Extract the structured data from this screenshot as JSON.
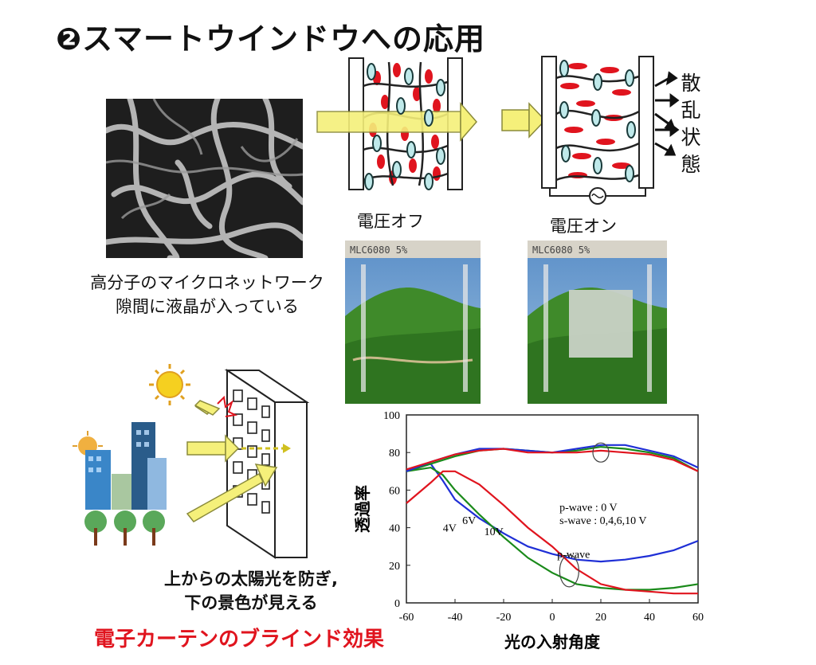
{
  "title": "❷スマートウインドウへの応用",
  "scatter_label": [
    "散",
    "乱",
    "状",
    "態"
  ],
  "voltage_off": "電圧オフ",
  "voltage_on": "電圧オン",
  "micro_caption": [
    "高分子のマイクロネットワーク",
    "隙間に液晶が入っている"
  ],
  "photo_text_off": "MLC6080 5%",
  "photo_text_on": "MLC6080 5%",
  "blind_caption": [
    "上からの太陽光を防ぎ,",
    "下の景色が見える"
  ],
  "effect_label": "電子カーテンのブラインド効果",
  "colors": {
    "red": "#e0141e",
    "green": "#1a8a1a",
    "blue": "#1f2fd6",
    "arrow_yellow": "#f5f07a"
  },
  "chart_data": {
    "type": "line",
    "xlabel": "光の入射角度",
    "ylabel": "透過率",
    "xlim": [
      -60,
      60
    ],
    "ylim": [
      0,
      100
    ],
    "xticks": [
      "-60",
      "-40",
      "-20",
      "0",
      "20",
      "40",
      "60"
    ],
    "yticks": [
      "0",
      "20",
      "40",
      "60",
      "80",
      "100"
    ],
    "annotations": [
      "4V",
      "6V",
      "10V",
      "p-wave",
      "p-wave : 0 V",
      "s-wave : 0,4,6,10 V"
    ],
    "series": [
      {
        "name": "4V",
        "color": "#1f2fd6",
        "points": [
          [
            -60,
            70
          ],
          [
            -50,
            74
          ],
          [
            -45,
            65
          ],
          [
            -40,
            55
          ],
          [
            -30,
            45
          ],
          [
            -20,
            37
          ],
          [
            -10,
            30
          ],
          [
            0,
            26
          ],
          [
            10,
            23
          ],
          [
            20,
            22
          ],
          [
            30,
            23
          ],
          [
            40,
            25
          ],
          [
            50,
            28
          ],
          [
            60,
            33
          ]
        ]
      },
      {
        "name": "6V",
        "color": "#1a8a1a",
        "points": [
          [
            -60,
            70
          ],
          [
            -50,
            72
          ],
          [
            -45,
            68
          ],
          [
            -40,
            60
          ],
          [
            -30,
            47
          ],
          [
            -20,
            35
          ],
          [
            -10,
            24
          ],
          [
            0,
            16
          ],
          [
            10,
            10
          ],
          [
            20,
            8
          ],
          [
            30,
            7
          ],
          [
            40,
            7
          ],
          [
            50,
            8
          ],
          [
            60,
            10
          ]
        ]
      },
      {
        "name": "10V",
        "color": "#e0141e",
        "points": [
          [
            -60,
            53
          ],
          [
            -50,
            64
          ],
          [
            -45,
            70
          ],
          [
            -40,
            70
          ],
          [
            -30,
            63
          ],
          [
            -20,
            52
          ],
          [
            -10,
            40
          ],
          [
            0,
            30
          ],
          [
            10,
            18
          ],
          [
            20,
            10
          ],
          [
            30,
            7
          ],
          [
            40,
            6
          ],
          [
            50,
            5
          ],
          [
            60,
            5
          ]
        ]
      },
      {
        "name": "p-wave 0V",
        "color": "#1a8a1a",
        "points": [
          [
            -60,
            70
          ],
          [
            -50,
            74
          ],
          [
            -40,
            78
          ],
          [
            -30,
            81
          ],
          [
            -20,
            82
          ],
          [
            -10,
            81
          ],
          [
            0,
            80
          ],
          [
            10,
            81
          ],
          [
            20,
            83
          ],
          [
            30,
            82
          ],
          [
            40,
            80
          ],
          [
            50,
            77
          ],
          [
            60,
            70
          ]
        ]
      },
      {
        "name": "s-wave",
        "color": "#1f2fd6",
        "points": [
          [
            -60,
            70
          ],
          [
            -50,
            75
          ],
          [
            -40,
            79
          ],
          [
            -30,
            82
          ],
          [
            -20,
            82
          ],
          [
            -10,
            81
          ],
          [
            0,
            80
          ],
          [
            10,
            82
          ],
          [
            20,
            84
          ],
          [
            30,
            84
          ],
          [
            40,
            81
          ],
          [
            50,
            78
          ],
          [
            60,
            72
          ]
        ]
      },
      {
        "name": "s-wave 10V",
        "color": "#e0141e",
        "points": [
          [
            -60,
            71
          ],
          [
            -50,
            75
          ],
          [
            -40,
            79
          ],
          [
            -30,
            81
          ],
          [
            -20,
            82
          ],
          [
            -10,
            80
          ],
          [
            0,
            80
          ],
          [
            10,
            80
          ],
          [
            20,
            81
          ],
          [
            30,
            80
          ],
          [
            40,
            79
          ],
          [
            50,
            76
          ],
          [
            60,
            70
          ]
        ]
      }
    ]
  }
}
